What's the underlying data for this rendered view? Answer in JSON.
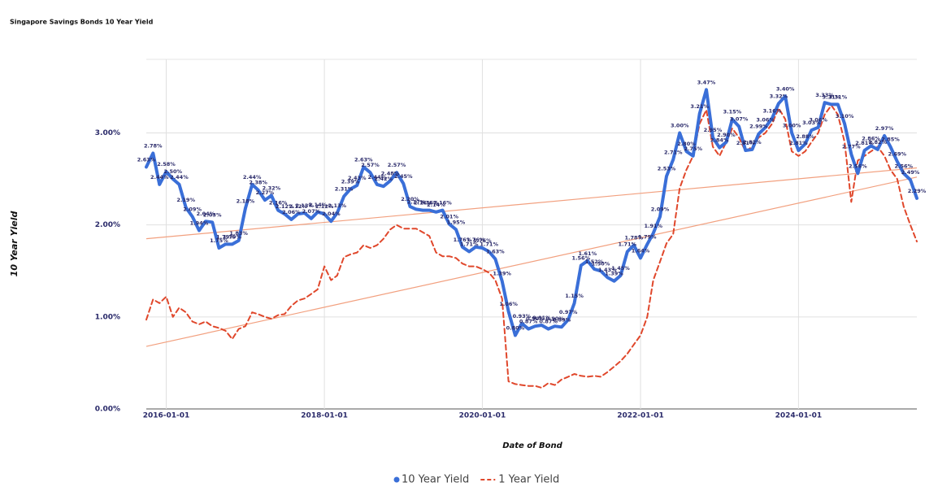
{
  "chart_data": {
    "type": "line",
    "title": "Singapore Savings Bonds 10 Year Yield",
    "xlabel": "Date of Bond",
    "ylabel": "10 Year Yield",
    "x": [
      "2015-10-01",
      "2015-11-01",
      "2015-12-01",
      "2016-01-01",
      "2016-02-01",
      "2016-03-01",
      "2016-04-01",
      "2016-05-01",
      "2016-06-01",
      "2016-07-01",
      "2016-08-01",
      "2016-09-01",
      "2016-10-01",
      "2016-11-01",
      "2016-12-01",
      "2017-01-01",
      "2017-02-01",
      "2017-03-01",
      "2017-04-01",
      "2017-05-01",
      "2017-06-01",
      "2017-07-01",
      "2017-08-01",
      "2017-09-01",
      "2017-10-01",
      "2017-11-01",
      "2017-12-01",
      "2018-01-01",
      "2018-02-01",
      "2018-03-01",
      "2018-04-01",
      "2018-05-01",
      "2018-06-01",
      "2018-07-01",
      "2018-08-01",
      "2018-09-01",
      "2018-10-01",
      "2018-11-01",
      "2018-12-01",
      "2019-01-01",
      "2019-02-01",
      "2019-03-01",
      "2019-04-01",
      "2019-05-01",
      "2019-06-01",
      "2019-07-01",
      "2019-08-01",
      "2019-09-01",
      "2019-10-01",
      "2019-11-01",
      "2019-12-01",
      "2020-01-01",
      "2020-02-01",
      "2020-03-01",
      "2020-04-01",
      "2020-05-01",
      "2020-06-01",
      "2020-07-01",
      "2020-08-01",
      "2020-09-01",
      "2020-10-01",
      "2020-11-01",
      "2020-12-01",
      "2021-01-01",
      "2021-02-01",
      "2021-03-01",
      "2021-04-01",
      "2021-05-01",
      "2021-06-01",
      "2021-07-01",
      "2021-08-01",
      "2021-09-01",
      "2021-10-01",
      "2021-11-01",
      "2021-12-01",
      "2022-01-01",
      "2022-02-01",
      "2022-03-01",
      "2022-04-01",
      "2022-05-01",
      "2022-06-01",
      "2022-07-01",
      "2022-08-01",
      "2022-09-01",
      "2022-10-01",
      "2022-11-01",
      "2022-12-01",
      "2023-01-01",
      "2023-02-01",
      "2023-03-01",
      "2023-04-01",
      "2023-05-01",
      "2023-06-01",
      "2023-07-01",
      "2023-08-01",
      "2023-09-01",
      "2023-10-01",
      "2023-11-01",
      "2023-12-01",
      "2024-01-01",
      "2024-02-01",
      "2024-03-01",
      "2024-04-01",
      "2024-05-01",
      "2024-06-01",
      "2024-07-01",
      "2024-08-01",
      "2024-09-01",
      "2024-10-01",
      "2024-11-01",
      "2024-12-01",
      "2025-01-01",
      "2025-02-01",
      "2025-03-01",
      "2025-04-01",
      "2025-05-01",
      "2025-06-01",
      "2025-07-01"
    ],
    "series": [
      {
        "name": "10 Year Yield",
        "color": "#3a6fd8",
        "style": "solid",
        "values": [
          2.63,
          2.78,
          2.44,
          2.58,
          2.5,
          2.44,
          2.19,
          2.09,
          1.94,
          2.04,
          2.03,
          1.75,
          1.79,
          1.79,
          1.83,
          2.18,
          2.44,
          2.38,
          2.27,
          2.32,
          2.16,
          2.12,
          2.06,
          2.12,
          2.13,
          2.07,
          2.14,
          2.12,
          2.04,
          2.13,
          2.31,
          2.39,
          2.43,
          2.63,
          2.57,
          2.44,
          2.42,
          2.48,
          2.57,
          2.45,
          2.2,
          2.17,
          2.16,
          2.16,
          2.14,
          2.16,
          2.01,
          1.95,
          1.76,
          1.71,
          1.76,
          1.75,
          1.71,
          1.63,
          1.39,
          1.06,
          0.8,
          0.93,
          0.87,
          0.9,
          0.91,
          0.87,
          0.9,
          0.89,
          0.97,
          1.15,
          1.56,
          1.61,
          1.52,
          1.5,
          1.43,
          1.39,
          1.45,
          1.71,
          1.78,
          1.64,
          1.79,
          1.91,
          2.09,
          2.53,
          2.71,
          3.0,
          2.8,
          2.75,
          3.21,
          3.47,
          2.95,
          2.84,
          2.9,
          3.15,
          3.07,
          2.81,
          2.82,
          2.99,
          3.06,
          3.16,
          3.32,
          3.4,
          3.0,
          2.81,
          2.88,
          3.03,
          3.06,
          3.33,
          3.31,
          3.31,
          3.1,
          2.77,
          2.56,
          2.81,
          2.86,
          2.82,
          2.97,
          2.85,
          2.69,
          2.56,
          2.49,
          2.29
        ],
        "value_labels": [
          "2.63%",
          "2.78%",
          "2.44%",
          "2.58%",
          "2.50%",
          "2.44%",
          "2.19%",
          "2.09%",
          "1.94%",
          "2.04%",
          "2.03%",
          "1.75%",
          "1.79%",
          "1.79%",
          "1.83%",
          "2.18%",
          "2.44%",
          "2.38%",
          "2.27%",
          "2.32%",
          "2.16%",
          "2.12%",
          "2.06%",
          "2.12%",
          "2.13%",
          "2.07%",
          "2.14%",
          "2.12%",
          "2.04%",
          "2.13%",
          "2.31%",
          "2.39%",
          "2.43%",
          "2.63%",
          "2.57%",
          "2.44%",
          "2.42%",
          "2.48%",
          "2.57%",
          "2.45%",
          "2.20%",
          "2.17%",
          "2.16%",
          "2.16%",
          "2.14%",
          "2.16%",
          "2.01%",
          "1.95%",
          "1.76%",
          "1.71%",
          "1.76%",
          "1.75%",
          "1.71%",
          "1.63%",
          "1.39%",
          "1.06%",
          "0.80%",
          "0.93%",
          "0.87%",
          "0.90%",
          "0.91%",
          "0.87%",
          "0.90%",
          "0.89%",
          "0.97%",
          "1.15%",
          "1.56%",
          "1.61%",
          "1.52%",
          "1.50%",
          "1.43%",
          "1.39%",
          "1.45%",
          "1.71%",
          "1.78%",
          "1.64%",
          "1.79%",
          "1.91%",
          "2.09%",
          "2.53%",
          "2.71%",
          "3.00%",
          "2.80%",
          "2.75%",
          "3.21%",
          "3.47%",
          "2.95%",
          "2.84%",
          "2.90%",
          "3.15%",
          "3.07%",
          "2.81%",
          "2.82%",
          "2.99%",
          "3.06%",
          "3.16%",
          "3.32%",
          "3.40%",
          "3.00%",
          "2.81%",
          "2.88%",
          "3.03%",
          "3.06%",
          "3.33%",
          "3.31%",
          "3.31%",
          "3.10%",
          "2.77%",
          "2.56%",
          "2.81%",
          "2.86%",
          "2.82%",
          "2.97%",
          "2.85%",
          "2.69%",
          "2.56%",
          "2.49%",
          "2.29%"
        ]
      },
      {
        "name": "1 Year Yield",
        "color": "#e0472b",
        "style": "dashed",
        "values": [
          0.97,
          1.19,
          1.15,
          1.22,
          1.0,
          1.1,
          1.05,
          0.95,
          0.92,
          0.95,
          0.9,
          0.88,
          0.85,
          0.76,
          0.87,
          0.9,
          1.05,
          1.03,
          1.0,
          0.98,
          1.02,
          1.03,
          1.12,
          1.18,
          1.2,
          1.25,
          1.3,
          1.55,
          1.4,
          1.45,
          1.65,
          1.68,
          1.7,
          1.78,
          1.75,
          1.78,
          1.85,
          1.95,
          2.0,
          1.96,
          1.96,
          1.96,
          1.92,
          1.88,
          1.7,
          1.66,
          1.66,
          1.64,
          1.58,
          1.55,
          1.55,
          1.52,
          1.48,
          1.4,
          1.2,
          0.3,
          0.27,
          0.26,
          0.25,
          0.25,
          0.23,
          0.28,
          0.26,
          0.32,
          0.35,
          0.38,
          0.36,
          0.35,
          0.36,
          0.35,
          0.4,
          0.46,
          0.52,
          0.6,
          0.7,
          0.8,
          1.0,
          1.4,
          1.6,
          1.8,
          1.9,
          2.4,
          2.6,
          2.75,
          3.1,
          3.25,
          2.85,
          2.75,
          2.9,
          3.05,
          2.95,
          2.8,
          2.85,
          2.95,
          3.0,
          3.1,
          3.27,
          3.15,
          2.8,
          2.75,
          2.8,
          2.9,
          3.0,
          3.2,
          3.3,
          3.2,
          2.9,
          2.25,
          2.7,
          2.75,
          2.8,
          2.85,
          2.75,
          2.6,
          2.5,
          2.2,
          2.0,
          1.82
        ]
      }
    ],
    "trendlines": [
      {
        "color": "#f2a07f",
        "x": [
          "2015-10-01",
          "2025-07-01"
        ],
        "values": [
          1.85,
          2.62
        ]
      },
      {
        "color": "#f2a07f",
        "x": [
          "2015-10-01",
          "2025-07-01"
        ],
        "values": [
          0.68,
          2.52
        ]
      }
    ],
    "xlim": [
      "2015-10-01",
      "2025-07-01"
    ],
    "xticks": [
      "2016-01-01",
      "2018-01-01",
      "2020-01-01",
      "2022-01-01",
      "2024-01-01"
    ],
    "ylim": [
      0,
      3.8
    ],
    "yticks": [
      {
        "value": 0,
        "label": "0.00%"
      },
      {
        "value": 1,
        "label": "1.00%"
      },
      {
        "value": 2,
        "label": "2.00%"
      },
      {
        "value": 3,
        "label": "3.00%"
      }
    ],
    "grid": true,
    "legend": "bottom"
  }
}
